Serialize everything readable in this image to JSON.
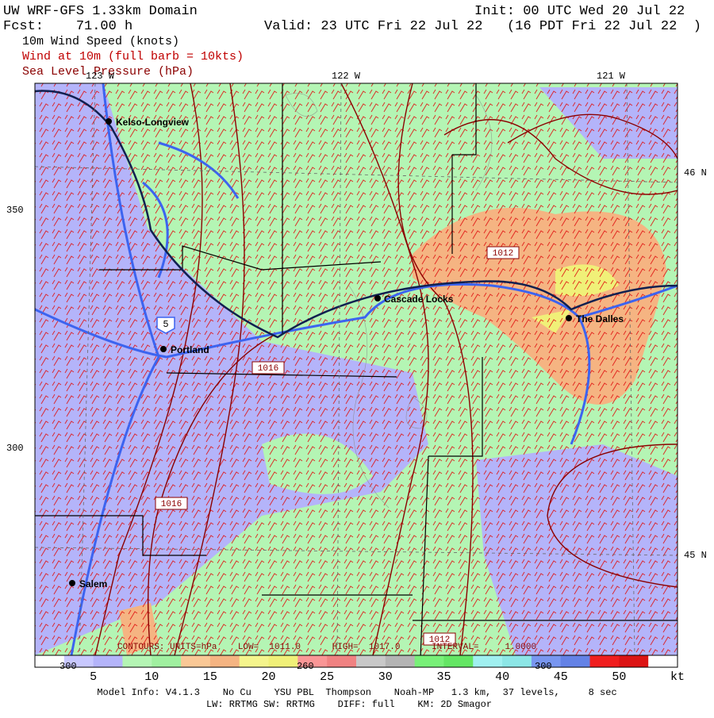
{
  "header": {
    "title": "UW WRF-GFS 1.33km Domain",
    "init": "Init: 00 UTC Wed 20 Jul 22",
    "fcst": "Fcst:    71.00 h",
    "valid": "Valid: 23 UTC Fri 22 Jul 22   (16 PDT Fri 22 Jul 22  )",
    "fields": [
      "10m Wind Speed (knots)",
      "Wind at 10m (full barb = 10kts)",
      "Sea Level Pressure (hPa)"
    ]
  },
  "axes": {
    "top": [
      "123 W",
      "122 W",
      "121 W"
    ],
    "right": [
      "46 N",
      "45 N"
    ],
    "left": [
      "350",
      "300"
    ]
  },
  "cities": [
    "Kelso-Longview",
    "Portland",
    "Cascade Locks",
    "The Dalles",
    "Salem"
  ],
  "map_labels": {
    "highway": "5",
    "contours": [
      "1012",
      "1016",
      "1016",
      "1012"
    ],
    "contour_info": "CONTOURS: UNITS=hPa    LOW=  1011.0      HIGH=  1017.0      INTERVAL=     1.0000"
  },
  "colorbar": {
    "labels": [
      "5",
      "10",
      "15",
      "20",
      "25",
      "30",
      "35",
      "40",
      "45",
      "50"
    ],
    "unit": "kt",
    "under_labels": [
      "300",
      "260",
      "300"
    ],
    "colors": [
      "#ffffff",
      "#c8c8ff",
      "#b4b4fa",
      "#b4f5b4",
      "#a0f0a0",
      "#fac896",
      "#f5b482",
      "#f5f58c",
      "#f0f078",
      "#fa9696",
      "#f08282",
      "#c8c8c8",
      "#b4b4b4",
      "#78f078",
      "#64e664",
      "#a0f0f0",
      "#8ce6e6",
      "#7896f0",
      "#6482e6",
      "#f01e1e",
      "#dc1414",
      "#ffffff"
    ]
  },
  "footer": [
    "Model Info: V4.1.3    No Cu    YSU PBL  Thompson    Noah-MP   1.3 km,  37 levels,     8 sec",
    "LW: RRTMG SW: RRTMG    DIFF: full    KM: 2D Smagor"
  ]
}
